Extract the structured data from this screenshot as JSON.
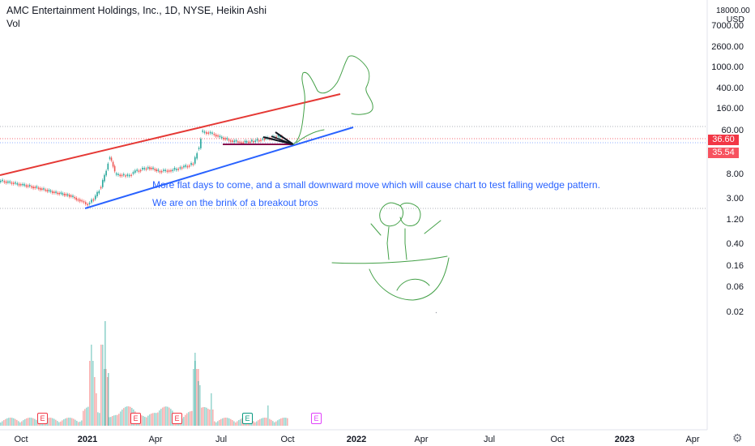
{
  "header": {
    "title": "AMC Entertainment Holdings, Inc., 1D, NYSE, Heikin Ashi",
    "volume_label": "Vol"
  },
  "annotations": {
    "line1": "More flat days to come, and a small downward move which will cause chart to test falling wedge pattern.",
    "line2": "We are on the brink of a breakout bros"
  },
  "price_axis": {
    "currency": "USD",
    "top_label": "18000.00",
    "tick_labels": [
      "7000.00",
      "2600.00",
      "1000.00",
      "400.00",
      "160.00",
      "60.00",
      "8.00",
      "3.00",
      "1.20",
      "0.40",
      "0.16",
      "0.06",
      "0.02"
    ],
    "current_price": "36.60",
    "current_price_color": "#f23645",
    "secondary_price": "35.54",
    "secondary_price_color": "#f7525f"
  },
  "time_axis": {
    "tick_labels": [
      "Oct",
      "2021",
      "Apr",
      "Jul",
      "Oct",
      "2022",
      "Apr",
      "Jul",
      "Oct",
      "2023",
      "Apr"
    ]
  },
  "event_markers": [
    {
      "letter": "E",
      "kind": "earnings",
      "color": "#f23645"
    },
    {
      "letter": "E",
      "kind": "earnings",
      "color": "#f23645"
    },
    {
      "letter": "E",
      "kind": "earnings",
      "color": "#f23645"
    },
    {
      "letter": "E",
      "kind": "earnings",
      "color": "#089981"
    },
    {
      "letter": "E",
      "kind": "earnings",
      "color": "#e040fb"
    }
  ],
  "chart_data": {
    "type": "candlestick",
    "scale": "log",
    "price_series": {
      "dates": [
        "2020-09-01",
        "2020-10-01",
        "2020-10-20",
        "2020-11-15",
        "2020-12-01",
        "2020-12-15",
        "2020-12-28",
        "2021-01-05",
        "2021-01-15",
        "2021-01-27",
        "2021-02-05",
        "2021-02-20",
        "2021-03-05",
        "2021-03-20",
        "2021-04-05",
        "2021-04-20",
        "2021-05-05",
        "2021-05-20",
        "2021-05-28",
        "2021-06-02",
        "2021-06-15",
        "2021-06-28",
        "2021-07-10",
        "2021-07-25",
        "2021-08-10",
        "2021-08-25",
        "2021-09-10",
        "2021-09-20"
      ],
      "close": [
        6.0,
        5.0,
        4.4,
        3.5,
        3.2,
        2.6,
        2.1,
        2.6,
        4.5,
        17.0,
        8.0,
        7.5,
        9.5,
        11.0,
        9.3,
        9.7,
        11.0,
        13.0,
        26.0,
        55.0,
        50.0,
        42.0,
        37.0,
        34.0,
        36.0,
        40.0,
        44.0,
        46.0
      ]
    },
    "ylim": [
      0.01,
      18000
    ],
    "colors": {
      "up": "#26a69a",
      "down": "#ef5350"
    }
  }
}
